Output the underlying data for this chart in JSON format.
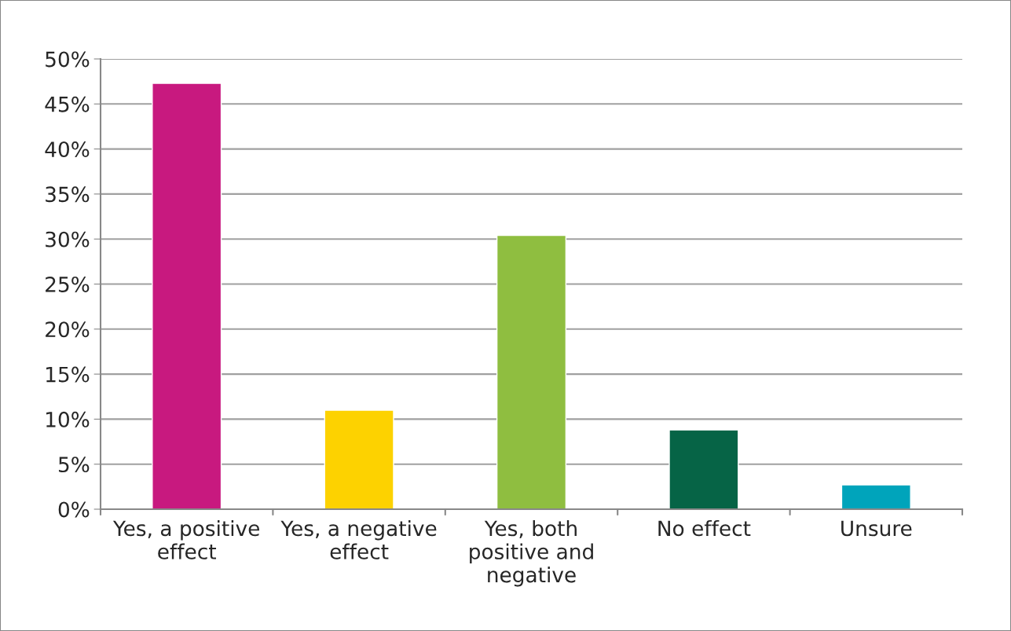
{
  "chart_data": {
    "type": "bar",
    "categories": [
      "Yes, a positive effect",
      "Yes, a negative effect",
      "Yes, both positive and negative",
      "No effect",
      "Unsure"
    ],
    "values": [
      47.3,
      11.0,
      30.4,
      8.8,
      2.7
    ],
    "colors": [
      "#c8197f",
      "#fdd200",
      "#8fbe40",
      "#066446",
      "#00a4bb"
    ],
    "ylim": [
      0,
      50
    ],
    "yticks": [
      {
        "value": 0,
        "label": "0%"
      },
      {
        "value": 5,
        "label": "5%"
      },
      {
        "value": 10,
        "label": "10%"
      },
      {
        "value": 15,
        "label": "15%"
      },
      {
        "value": 20,
        "label": "20%"
      },
      {
        "value": 25,
        "label": "25%"
      },
      {
        "value": 30,
        "label": "30%"
      },
      {
        "value": 35,
        "label": "35%"
      },
      {
        "value": 40,
        "label": "40%"
      },
      {
        "value": 45,
        "label": "45%"
      },
      {
        "value": 50,
        "label": "50%"
      }
    ],
    "grid": "y",
    "legend": false
  }
}
